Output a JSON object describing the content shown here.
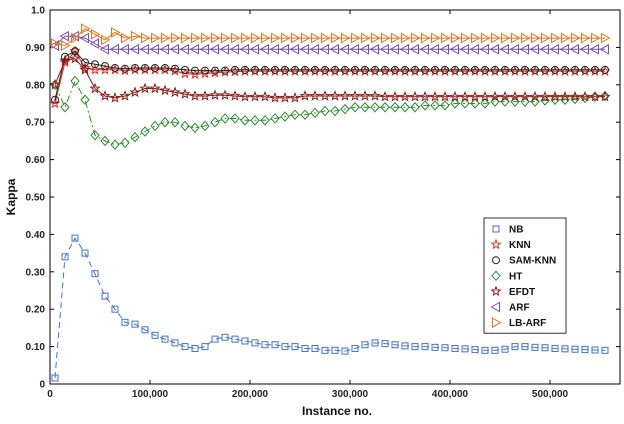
{
  "chart_data": {
    "type": "line",
    "title": "",
    "xlabel": "Instance no.",
    "ylabel": "Kappa",
    "xlim": [
      0,
      570000
    ],
    "ylim": [
      0,
      1.0
    ],
    "x_ticks": [
      0,
      100000,
      200000,
      300000,
      400000,
      500000
    ],
    "x_tick_labels": [
      "0",
      "100,000",
      "200,000",
      "300,000",
      "400,000",
      "500,000"
    ],
    "y_ticks": [
      0,
      0.1,
      0.2,
      0.3,
      0.4,
      0.5,
      0.6,
      0.7,
      0.8,
      0.9,
      1.0
    ],
    "y_tick_labels": [
      "0",
      "0.10",
      "0.20",
      "0.30",
      "0.40",
      "0.50",
      "0.60",
      "0.70",
      "0.80",
      "0.90",
      "1.0"
    ],
    "grid": false,
    "legend_position": "right",
    "x": [
      5000,
      15000,
      25000,
      35000,
      45000,
      55000,
      65000,
      75000,
      85000,
      95000,
      105000,
      115000,
      125000,
      135000,
      145000,
      155000,
      165000,
      175000,
      185000,
      195000,
      205000,
      215000,
      225000,
      235000,
      245000,
      255000,
      265000,
      275000,
      285000,
      295000,
      305000,
      315000,
      325000,
      335000,
      345000,
      355000,
      365000,
      375000,
      385000,
      395000,
      405000,
      415000,
      425000,
      435000,
      445000,
      455000,
      465000,
      475000,
      485000,
      495000,
      505000,
      515000,
      525000,
      535000,
      545000,
      555000
    ],
    "series": [
      {
        "name": "NB",
        "color": "#4472c4",
        "marker": "square",
        "dash": "6,4",
        "values": [
          0.016,
          0.34,
          0.39,
          0.35,
          0.295,
          0.235,
          0.2,
          0.165,
          0.16,
          0.145,
          0.13,
          0.12,
          0.11,
          0.1,
          0.095,
          0.1,
          0.12,
          0.125,
          0.12,
          0.115,
          0.11,
          0.105,
          0.105,
          0.1,
          0.1,
          0.095,
          0.095,
          0.09,
          0.09,
          0.088,
          0.095,
          0.105,
          0.11,
          0.108,
          0.105,
          0.102,
          0.1,
          0.1,
          0.098,
          0.097,
          0.095,
          0.094,
          0.092,
          0.09,
          0.09,
          0.093,
          0.1,
          0.1,
          0.098,
          0.097,
          0.095,
          0.094,
          0.093,
          0.092,
          0.091,
          0.09
        ]
      },
      {
        "name": "KNN",
        "color": "#d9342b",
        "marker": "star",
        "dash": "",
        "values": [
          0.75,
          0.86,
          0.89,
          0.845,
          0.84,
          0.84,
          0.84,
          0.838,
          0.84,
          0.84,
          0.84,
          0.84,
          0.837,
          0.83,
          0.828,
          0.83,
          0.832,
          0.834,
          0.835,
          0.836,
          0.836,
          0.836,
          0.836,
          0.836,
          0.836,
          0.836,
          0.836,
          0.836,
          0.836,
          0.836,
          0.836,
          0.836,
          0.836,
          0.836,
          0.836,
          0.836,
          0.836,
          0.836,
          0.836,
          0.836,
          0.836,
          0.836,
          0.836,
          0.836,
          0.836,
          0.836,
          0.836,
          0.836,
          0.836,
          0.836,
          0.836,
          0.836,
          0.836,
          0.836,
          0.836,
          0.836
        ]
      },
      {
        "name": "SAM-KNN",
        "color": "#222222",
        "marker": "circle",
        "dash": "",
        "values": [
          0.76,
          0.875,
          0.89,
          0.86,
          0.855,
          0.85,
          0.845,
          0.843,
          0.845,
          0.845,
          0.845,
          0.845,
          0.843,
          0.84,
          0.838,
          0.838,
          0.838,
          0.838,
          0.84,
          0.84,
          0.84,
          0.84,
          0.84,
          0.84,
          0.84,
          0.84,
          0.84,
          0.84,
          0.84,
          0.84,
          0.84,
          0.84,
          0.84,
          0.84,
          0.84,
          0.84,
          0.84,
          0.84,
          0.84,
          0.84,
          0.84,
          0.84,
          0.84,
          0.84,
          0.84,
          0.84,
          0.84,
          0.84,
          0.84,
          0.84,
          0.84,
          0.84,
          0.84,
          0.84,
          0.84,
          0.84
        ]
      },
      {
        "name": "HT",
        "color": "#2e8b2e",
        "marker": "diamond",
        "dash": "7,3,2,3",
        "values": [
          0.8,
          0.74,
          0.81,
          0.76,
          0.665,
          0.65,
          0.64,
          0.645,
          0.66,
          0.675,
          0.69,
          0.7,
          0.7,
          0.69,
          0.685,
          0.69,
          0.7,
          0.71,
          0.71,
          0.705,
          0.705,
          0.705,
          0.71,
          0.715,
          0.72,
          0.72,
          0.725,
          0.73,
          0.73,
          0.735,
          0.74,
          0.74,
          0.74,
          0.74,
          0.74,
          0.74,
          0.74,
          0.745,
          0.745,
          0.745,
          0.75,
          0.75,
          0.75,
          0.75,
          0.755,
          0.755,
          0.755,
          0.755,
          0.755,
          0.758,
          0.76,
          0.76,
          0.762,
          0.765,
          0.768,
          0.77
        ]
      },
      {
        "name": "EFDT",
        "color": "#8b1a1a",
        "marker": "star",
        "dash": "",
        "values": [
          0.8,
          0.865,
          0.87,
          0.84,
          0.79,
          0.77,
          0.765,
          0.77,
          0.78,
          0.79,
          0.79,
          0.785,
          0.78,
          0.775,
          0.77,
          0.77,
          0.772,
          0.772,
          0.77,
          0.768,
          0.768,
          0.768,
          0.765,
          0.765,
          0.765,
          0.77,
          0.77,
          0.77,
          0.77,
          0.77,
          0.77,
          0.77,
          0.77,
          0.768,
          0.768,
          0.768,
          0.768,
          0.768,
          0.768,
          0.768,
          0.768,
          0.768,
          0.768,
          0.768,
          0.768,
          0.768,
          0.768,
          0.768,
          0.768,
          0.768,
          0.768,
          0.768,
          0.768,
          0.768,
          0.768,
          0.768
        ]
      },
      {
        "name": "ARF",
        "color": "#7a4fb0",
        "marker": "triangle-left",
        "dash": "",
        "values": [
          0.905,
          0.93,
          0.93,
          0.925,
          0.91,
          0.895,
          0.895,
          0.895,
          0.895,
          0.895,
          0.895,
          0.895,
          0.895,
          0.895,
          0.895,
          0.895,
          0.895,
          0.895,
          0.895,
          0.895,
          0.895,
          0.895,
          0.895,
          0.895,
          0.895,
          0.895,
          0.895,
          0.895,
          0.895,
          0.895,
          0.895,
          0.895,
          0.895,
          0.895,
          0.895,
          0.895,
          0.895,
          0.895,
          0.895,
          0.895,
          0.895,
          0.895,
          0.895,
          0.895,
          0.895,
          0.895,
          0.895,
          0.895,
          0.895,
          0.895,
          0.895,
          0.895,
          0.895,
          0.895,
          0.895,
          0.895
        ]
      },
      {
        "name": "LB-ARF",
        "color": "#e8731a",
        "marker": "triangle-right",
        "dash": "",
        "values": [
          0.91,
          0.905,
          0.925,
          0.95,
          0.935,
          0.92,
          0.94,
          0.925,
          0.93,
          0.925,
          0.925,
          0.925,
          0.925,
          0.925,
          0.925,
          0.925,
          0.925,
          0.925,
          0.925,
          0.925,
          0.925,
          0.925,
          0.925,
          0.925,
          0.925,
          0.925,
          0.925,
          0.925,
          0.925,
          0.925,
          0.925,
          0.925,
          0.925,
          0.925,
          0.925,
          0.925,
          0.925,
          0.925,
          0.925,
          0.925,
          0.925,
          0.925,
          0.925,
          0.925,
          0.925,
          0.925,
          0.925,
          0.925,
          0.925,
          0.925,
          0.925,
          0.925,
          0.925,
          0.925,
          0.925,
          0.925
        ]
      }
    ]
  }
}
